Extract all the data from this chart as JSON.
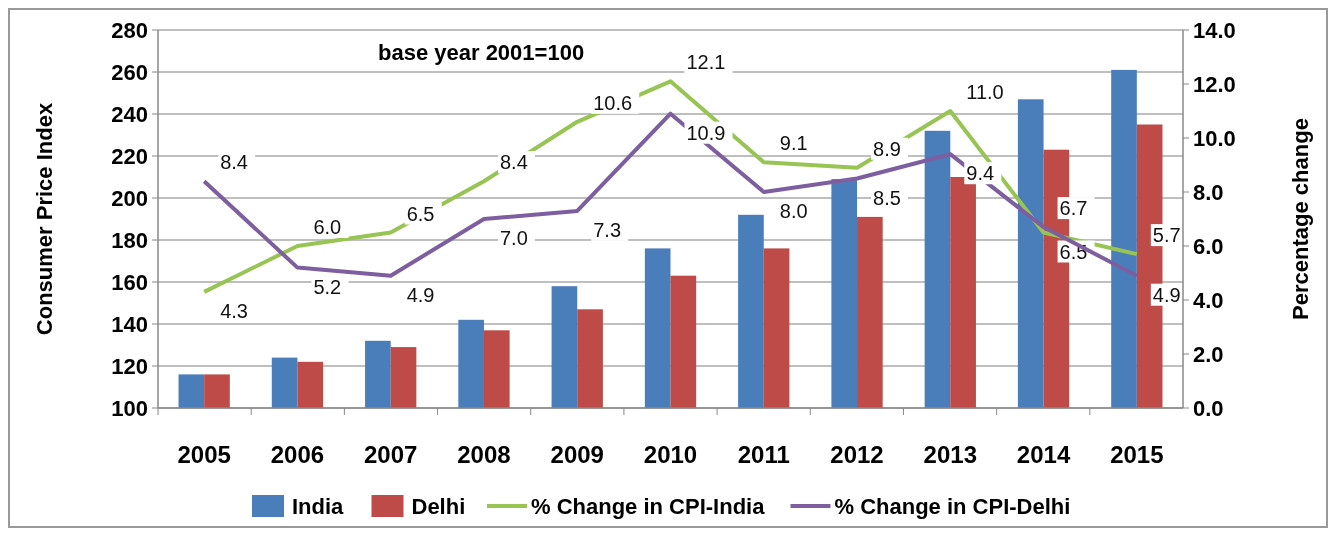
{
  "chart_data": {
    "type": "bar",
    "ylabel": "Consumer Price Index",
    "y2label": "Percentage change",
    "annotations": [
      "base year 2001=100"
    ],
    "categories": [
      "2005",
      "2006",
      "2007",
      "2008",
      "2009",
      "2010",
      "2011",
      "2012",
      "2013",
      "2014",
      "2015"
    ],
    "series": [
      {
        "name": "India",
        "color": "#4a7ebb",
        "values": [
          116,
          124,
          132,
          142,
          158,
          176,
          192,
          209,
          232,
          247,
          261
        ]
      },
      {
        "name": "Delhi",
        "color": "#be4b48",
        "values": [
          116,
          122,
          129,
          137,
          147,
          163,
          176,
          191,
          210,
          223,
          235
        ]
      },
      {
        "name": "% Change in CPI-India",
        "type": "line",
        "axis": "y2",
        "color": "#98c454",
        "values": [
          4.3,
          6.0,
          6.5,
          8.4,
          10.6,
          12.1,
          9.1,
          8.9,
          11.0,
          6.5,
          5.7
        ],
        "value_labels": [
          "4.3",
          "6.0",
          "6.5",
          "8.4",
          "10.6",
          "12.1",
          "9.1",
          "8.9",
          "11.0",
          "6.5",
          "5.7"
        ]
      },
      {
        "name": "% Change in CPI-Delhi",
        "type": "line",
        "axis": "y2",
        "color": "#7d5fa0",
        "values": [
          8.4,
          5.2,
          4.9,
          7.0,
          7.3,
          10.9,
          8.0,
          8.5,
          9.4,
          6.7,
          4.9
        ],
        "value_labels": [
          "8.4",
          "5.2",
          "4.9",
          "7.0",
          "7.3",
          "10.9",
          "8.0",
          "8.5",
          "9.4",
          "6.7",
          "4.9"
        ]
      }
    ],
    "ylim": [
      100,
      280
    ],
    "yticks": [
      100,
      120,
      140,
      160,
      180,
      200,
      220,
      240,
      260,
      280
    ],
    "y2lim": [
      0,
      14
    ],
    "y2ticks": [
      {
        "value": 0,
        "label": "0.0"
      },
      {
        "value": 2,
        "label": "2.0"
      },
      {
        "value": 4,
        "label": "4.0"
      },
      {
        "value": 6,
        "label": "6.0"
      },
      {
        "value": 8,
        "label": "8.0"
      },
      {
        "value": 10,
        "label": "10.0"
      },
      {
        "value": 12,
        "label": "12.0"
      },
      {
        "value": 14,
        "label": "14.0"
      }
    ],
    "grid": "y",
    "legend": "bottom"
  }
}
